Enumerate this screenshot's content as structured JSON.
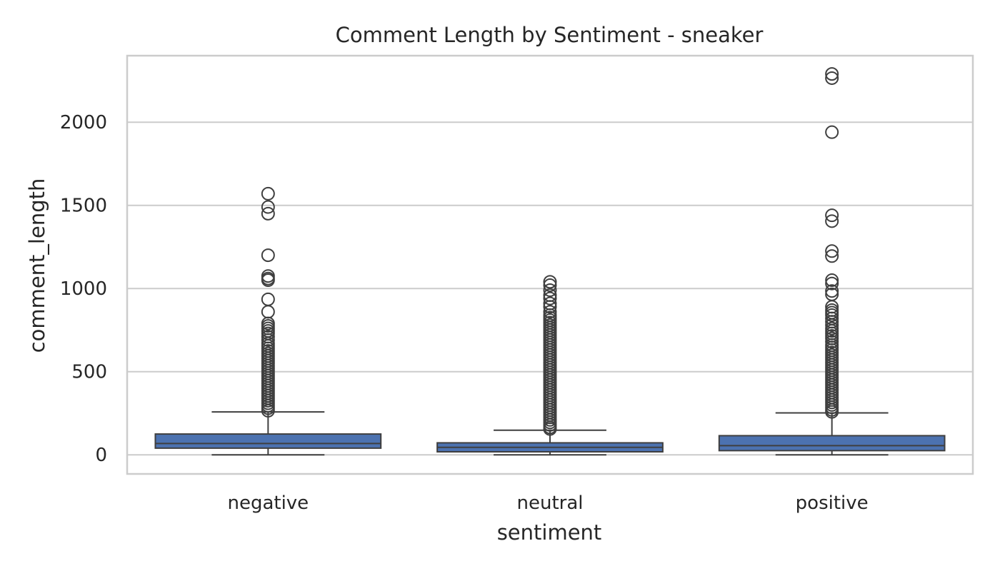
{
  "chart_data": {
    "type": "box",
    "title": "Comment Length by Sentiment - sneaker",
    "xlabel": "sentiment",
    "ylabel": "comment_length",
    "ylim": [
      -115,
      2400
    ],
    "y_ticks": [
      0,
      500,
      1000,
      1500,
      2000
    ],
    "grid": true,
    "legend": "none",
    "colors": {
      "box_fill": "#4c72b0",
      "box_edge": "#3f3f3f",
      "grid": "#cccccc",
      "spine": "#cccccc",
      "text": "#262626"
    },
    "categories": [
      "negative",
      "neutral",
      "positive"
    ],
    "boxes": [
      {
        "category": "negative",
        "whisker_low": 0,
        "q1": 40,
        "median": 68,
        "q3": 125,
        "whisker_high": 258,
        "outliers": [
          1570,
          1490,
          1450,
          1200,
          1075,
          1060,
          1050,
          935,
          860,
          790,
          775,
          760,
          745,
          730,
          710,
          690,
          670,
          655,
          640,
          625,
          610,
          595,
          580,
          565,
          550,
          535,
          520,
          505,
          490,
          475,
          460,
          445,
          430,
          415,
          400,
          385,
          370,
          355,
          340,
          325,
          310,
          295,
          280,
          265
        ]
      },
      {
        "category": "neutral",
        "whisker_low": 0,
        "q1": 18,
        "median": 45,
        "q3": 72,
        "whisker_high": 148,
        "outliers": [
          1040,
          1020,
          990,
          960,
          940,
          910,
          890,
          860,
          840,
          825,
          810,
          795,
          780,
          765,
          750,
          735,
          720,
          705,
          690,
          675,
          660,
          645,
          630,
          615,
          600,
          585,
          570,
          555,
          540,
          525,
          510,
          495,
          480,
          465,
          450,
          435,
          420,
          405,
          390,
          375,
          360,
          345,
          330,
          315,
          300,
          285,
          270,
          255,
          240,
          225,
          210,
          195,
          180,
          165,
          155
        ]
      },
      {
        "category": "positive",
        "whisker_low": 0,
        "q1": 25,
        "median": 55,
        "q3": 115,
        "whisker_high": 252,
        "outliers": [
          2290,
          2265,
          1940,
          1440,
          1405,
          1225,
          1195,
          1050,
          1030,
          985,
          965,
          890,
          870,
          855,
          840,
          820,
          800,
          780,
          760,
          745,
          730,
          715,
          700,
          680,
          660,
          645,
          630,
          615,
          600,
          585,
          570,
          555,
          540,
          525,
          510,
          495,
          480,
          465,
          450,
          435,
          420,
          405,
          390,
          375,
          360,
          345,
          330,
          315,
          300,
          285,
          270,
          258
        ]
      }
    ]
  }
}
